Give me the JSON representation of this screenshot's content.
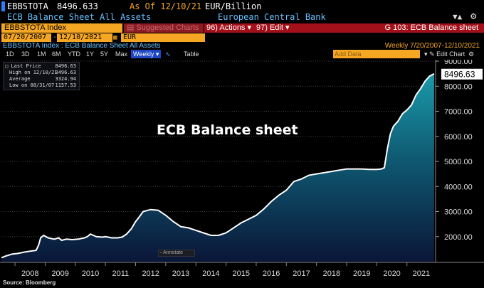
{
  "header": {
    "ticker": "EBBSTOTA",
    "price": "8496.633",
    "as_of": "As Of 12/10/21",
    "units": "EUR/Billion",
    "security_name": "ECB Balance Sheet All Assets",
    "issuer": "European Central Bank"
  },
  "command_bar": {
    "security": "EBBSTOTA Index",
    "suggested": "Suggested Charts",
    "actions": "Actions",
    "edit": "Edit",
    "function_title": "G 103: ECB Balance sheet"
  },
  "range": {
    "start": "07/20/2007",
    "end": "12/10/2021",
    "currency": "EUR"
  },
  "subheader": {
    "index_desc": "EBBSTOTA Index : ECB Balance Sheet All Assets",
    "frequency": "Weekly  7/20/2007-12/10/2021"
  },
  "toolbar": {
    "periods": [
      "1D",
      "3D",
      "1M",
      "6M",
      "YTD",
      "1Y",
      "5Y",
      "Max"
    ],
    "frequency": "Weekly",
    "table": "Table",
    "add_data": "Add Data",
    "edit_chart": "Edit Chart"
  },
  "legend": {
    "last_label": "Last Price",
    "last_value": "8496.63",
    "high_label": "High on 12/10/21",
    "high_value": "8496.63",
    "avg_label": "Average",
    "avg_value": "3324.94",
    "low_label": "Low on 08/31/07",
    "low_value": "1157.53"
  },
  "annotate": "Annotate",
  "source": "Source: Bloomberg",
  "colors": {
    "accent": "#f5a623",
    "command_red": "#a3101a",
    "label_blue": "#66c0ff",
    "area_top": "#1a8ea0",
    "area_bottom": "#0a1a3a"
  },
  "chart_data": {
    "type": "area",
    "title": "ECB Balance sheet",
    "last_value_label": "8496.63",
    "ylim": [
      1000,
      9000
    ],
    "yticks": [
      2000,
      3000,
      4000,
      5000,
      6000,
      7000,
      8000,
      9000
    ],
    "ytick_labels": [
      "2000.00",
      "3000.00",
      "4000.00",
      "5000.00",
      "6000.00",
      "7000.00",
      "8000.00",
      "9000.00"
    ],
    "xlim": [
      2007.55,
      2021.95
    ],
    "x_tick_labels": [
      "2008",
      "2009",
      "2010",
      "2011",
      "2012",
      "2013",
      "2014",
      "2015",
      "2016",
      "2017",
      "2018",
      "2019",
      "2020",
      "2021"
    ],
    "x": [
      2007.55,
      2007.7,
      2007.9,
      2008.1,
      2008.3,
      2008.5,
      2008.7,
      2008.78,
      2008.85,
      2008.95,
      2009.1,
      2009.3,
      2009.45,
      2009.55,
      2009.7,
      2009.9,
      2010.1,
      2010.3,
      2010.4,
      2010.5,
      2010.7,
      2010.9,
      2011.0,
      2011.2,
      2011.4,
      2011.55,
      2011.7,
      2011.85,
      2012.0,
      2012.1,
      2012.25,
      2012.5,
      2012.75,
      2013.0,
      2013.25,
      2013.5,
      2013.75,
      2014.0,
      2014.25,
      2014.5,
      2014.75,
      2015.0,
      2015.25,
      2015.5,
      2015.75,
      2016.0,
      2016.25,
      2016.5,
      2016.75,
      2017.0,
      2017.25,
      2017.5,
      2017.75,
      2018.0,
      2018.25,
      2018.5,
      2018.75,
      2019.0,
      2019.25,
      2019.5,
      2019.75,
      2020.0,
      2020.15,
      2020.25,
      2020.35,
      2020.45,
      2020.55,
      2020.7,
      2020.85,
      2021.0,
      2021.15,
      2021.3,
      2021.45,
      2021.6,
      2021.75,
      2021.9
    ],
    "values": [
      1160,
      1230,
      1300,
      1330,
      1380,
      1420,
      1450,
      1650,
      1950,
      2050,
      1950,
      1900,
      1950,
      1850,
      1900,
      1880,
      1900,
      1950,
      2000,
      2100,
      2000,
      1980,
      2000,
      1950,
      1950,
      1980,
      2100,
      2300,
      2600,
      2750,
      3000,
      3080,
      3050,
      2850,
      2600,
      2400,
      2350,
      2250,
      2150,
      2050,
      2050,
      2150,
      2350,
      2550,
      2700,
      2850,
      3100,
      3400,
      3650,
      3850,
      4200,
      4300,
      4450,
      4500,
      4550,
      4600,
      4650,
      4700,
      4700,
      4700,
      4680,
      4680,
      4700,
      4750,
      5500,
      6100,
      6400,
      6600,
      6900,
      7050,
      7250,
      7650,
      7900,
      8200,
      8400,
      8496.63
    ]
  }
}
